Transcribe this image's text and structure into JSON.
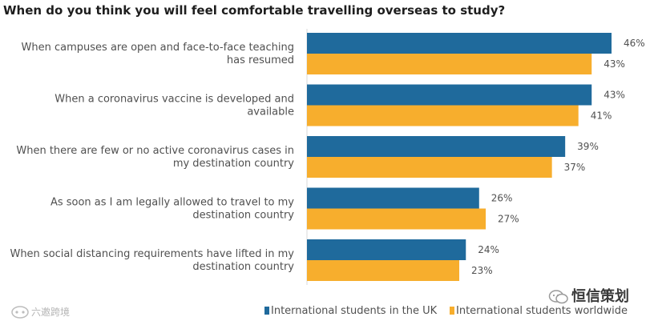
{
  "title": "When do you think you will feel comfortable travelling overseas to study?",
  "watermarks": {
    "left": "六邀跨境",
    "right": "恒信策划"
  },
  "colors": {
    "uk": "#1f6a9c",
    "worldwide": "#f7ae2d"
  },
  "chart_data": {
    "type": "bar",
    "orientation": "horizontal",
    "title": "When do you think you will feel comfortable travelling overseas to study?",
    "categories": [
      [
        "When campuses are open and face-to-face teaching",
        "has resumed"
      ],
      [
        "When a coronavirus vaccine is developed and",
        "available"
      ],
      [
        "When there are few or no active coronavirus cases in",
        "my destination country"
      ],
      [
        "As soon as I am legally allowed to travel to my",
        "destination country"
      ],
      [
        "When social distancing requirements have lifted in my",
        "destination country"
      ]
    ],
    "series": [
      {
        "name": "International students in the UK",
        "values": [
          46,
          43,
          39,
          26,
          24
        ],
        "color": "#1f6a9c"
      },
      {
        "name": "International students worldwide",
        "values": [
          43,
          41,
          37,
          27,
          23
        ],
        "color": "#f7ae2d"
      }
    ],
    "value_suffix": "%",
    "xlim": [
      0,
      46
    ],
    "legend_position": "bottom-right",
    "grid": false
  }
}
